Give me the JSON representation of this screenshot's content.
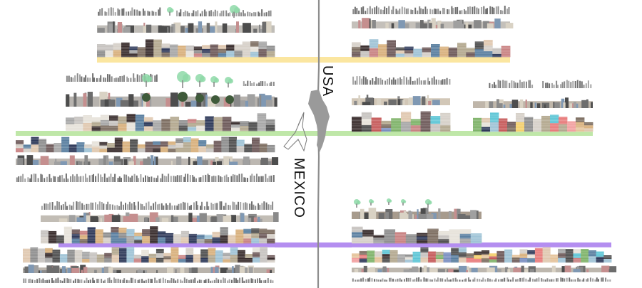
{
  "labels": {
    "north": "USA",
    "south": "MEXICO"
  },
  "colors": {
    "border": "#8e8e8e",
    "yellow_band": "#fbe6a0",
    "green_band": "#bfe7a8",
    "purple_band": "#b48ef0",
    "tree": "#8ed9a8",
    "silhouette": "#9a9a9a",
    "blocks": [
      "#6e5a5a",
      "#c7c3c0",
      "#2f3a5a",
      "#8e8e8e",
      "#d6d0c8",
      "#5a7fa0",
      "#b3a88f",
      "#3b2f2f",
      "#a7a7a7",
      "#c98282",
      "#e0c8b0",
      "#4f4f4f",
      "#d8b07c",
      "#9fc3d6",
      "#e6e2da",
      "#7d6e61"
    ],
    "rainbow": [
      "#e87c7c",
      "#f4d06c",
      "#5ec6d6",
      "#7fb36a",
      "#e5c39b",
      "#c65b5b",
      "#7a8fc1",
      "#f2a0a0"
    ]
  }
}
